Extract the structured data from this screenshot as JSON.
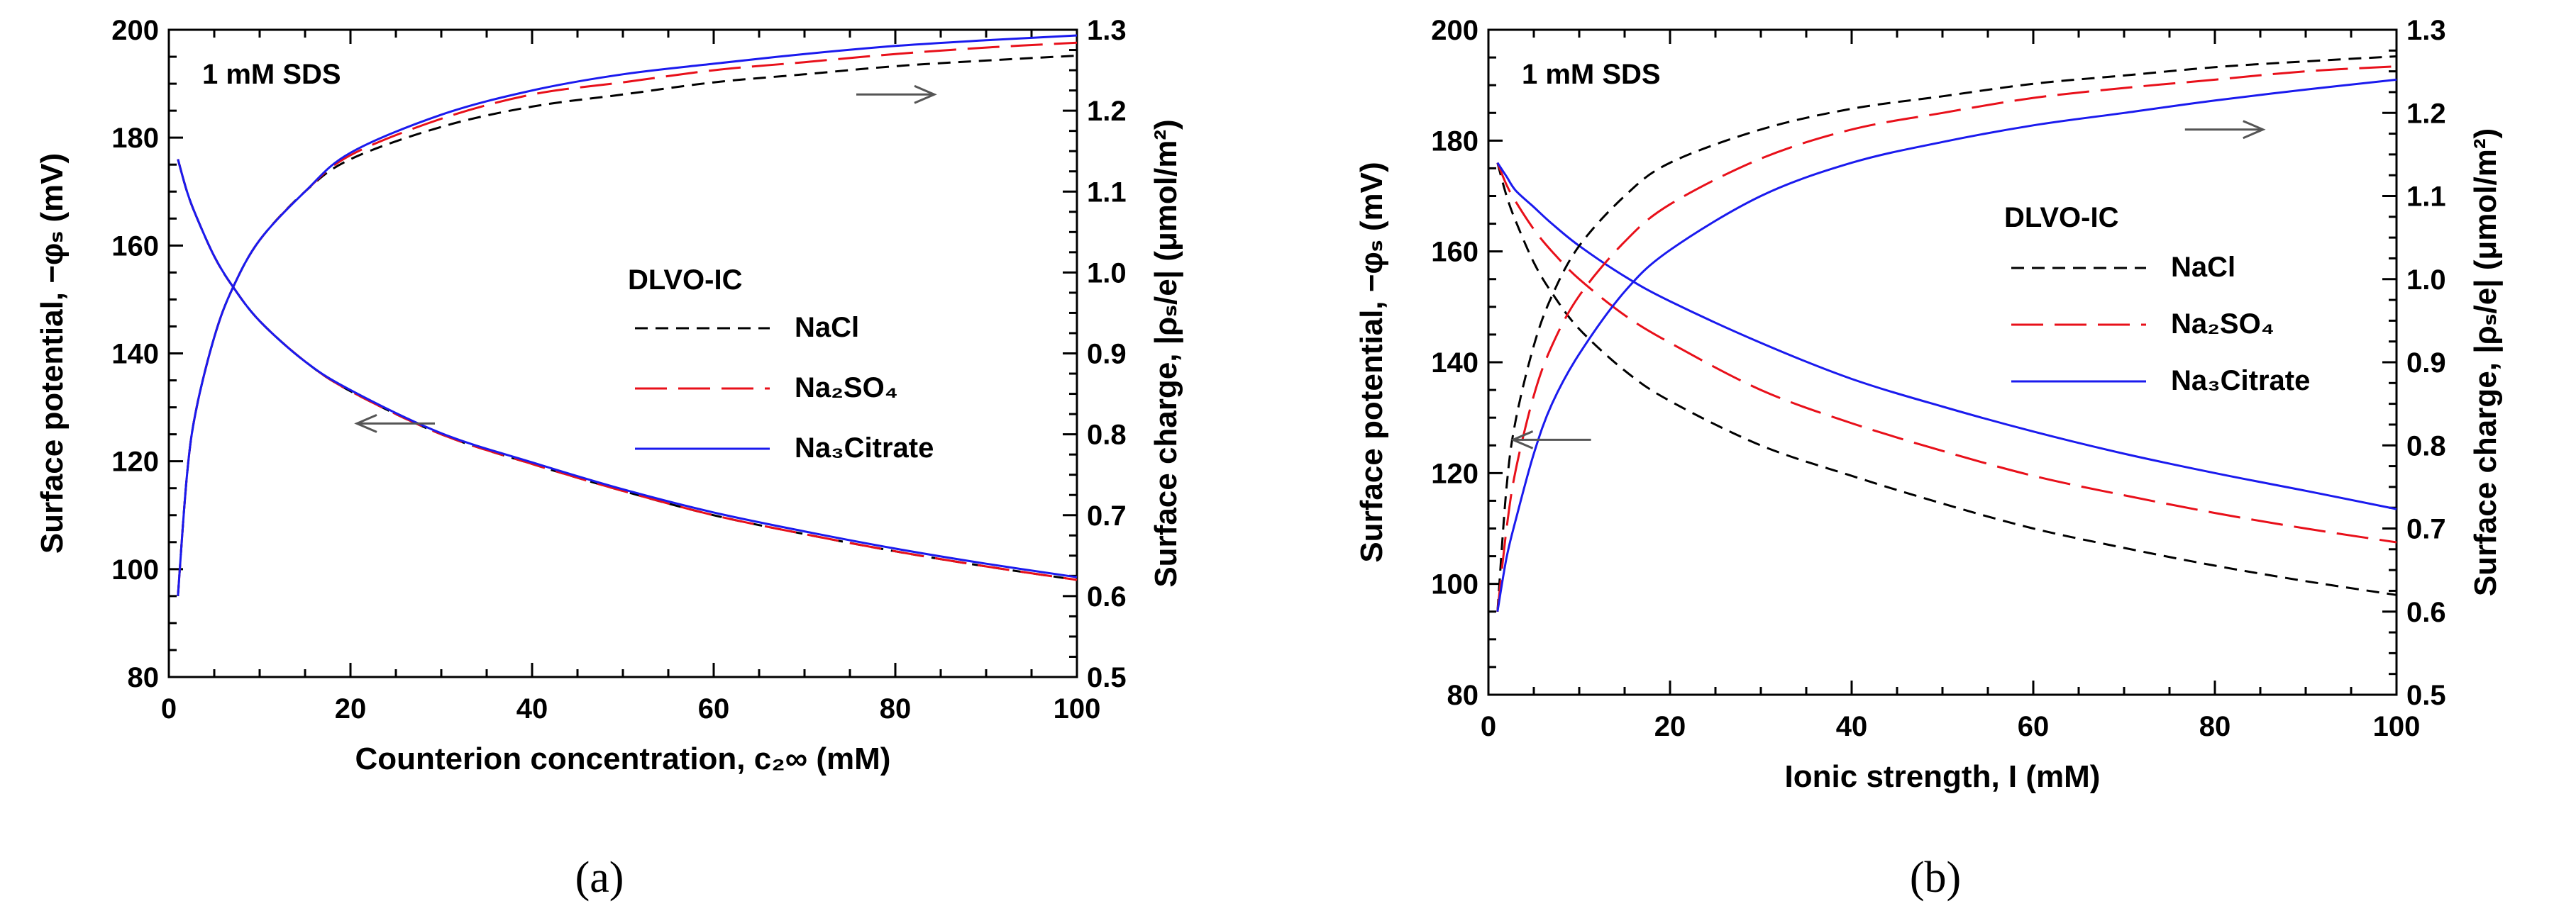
{
  "colors": {
    "NaCl": "#000000",
    "Na2SO4": "#e8101a",
    "Na3Citrate": "#1a1aee",
    "arrow": "#555555"
  },
  "chart_data": [
    {
      "type": "line",
      "panel_label": "(a)",
      "annotation": "1 mM SDS",
      "legend_title": "DLVO-IC",
      "legend": [
        {
          "key": "NaCl",
          "text": "NaCl",
          "style": "dashed short"
        },
        {
          "key": "Na2SO4",
          "text": "Na₂SO₄",
          "style": "dashed long"
        },
        {
          "key": "Na3Citrate",
          "text": "Na₃Citrate",
          "style": "solid"
        }
      ],
      "xlabel": "Counterion concentration, c₂∞ (mM)",
      "ylabel_left": "Surface potential, −φₛ (mV)",
      "ylabel_right": "Surface charge, |ρₛ/e| (μmol/m²)",
      "xlim": [
        0,
        100
      ],
      "ylim_left": [
        80,
        200
      ],
      "ylim_right": [
        0.5,
        1.3
      ],
      "xticks": [
        0,
        20,
        40,
        60,
        80,
        100
      ],
      "yticks_left": [
        80,
        100,
        120,
        140,
        160,
        180,
        200
      ],
      "yticks_right": [
        0.5,
        0.6,
        0.7,
        0.8,
        0.9,
        1.0,
        1.1,
        1.2,
        1.3
      ],
      "x": [
        1,
        2,
        3,
        5,
        7,
        10,
        15,
        20,
        30,
        40,
        50,
        60,
        70,
        80,
        90,
        100
      ],
      "series": [
        {
          "name": "NaCl",
          "axis": "left",
          "values": [
            176,
            170,
            165.5,
            158,
            152.5,
            146,
            138.5,
            133,
            125,
            119.5,
            114.5,
            110,
            106.5,
            103.3,
            100.5,
            98
          ]
        },
        {
          "name": "Na2SO4",
          "axis": "left",
          "values": [
            176,
            170,
            165.5,
            158,
            152.5,
            146,
            138.5,
            133,
            125,
            119.5,
            114.5,
            110,
            106.5,
            103.3,
            100.5,
            98
          ]
        },
        {
          "name": "Na3Citrate",
          "axis": "left",
          "values": [
            176,
            170,
            165.5,
            158,
            152.5,
            146,
            138.5,
            133.2,
            125.2,
            119.8,
            114.8,
            110.5,
            107,
            103.8,
            101,
            98.5
          ]
        },
        {
          "name": "NaCl",
          "axis": "right",
          "values": [
            0.6,
            0.75,
            0.83,
            0.92,
            0.98,
            1.04,
            1.1,
            1.14,
            1.18,
            1.205,
            1.22,
            1.235,
            1.245,
            1.255,
            1.262,
            1.268
          ]
        },
        {
          "name": "Na2SO4",
          "axis": "right",
          "values": [
            0.6,
            0.75,
            0.83,
            0.92,
            0.98,
            1.04,
            1.1,
            1.145,
            1.19,
            1.22,
            1.235,
            1.25,
            1.26,
            1.27,
            1.278,
            1.284
          ]
        },
        {
          "name": "Na3Citrate",
          "axis": "right",
          "values": [
            0.6,
            0.75,
            0.83,
            0.92,
            0.98,
            1.04,
            1.1,
            1.148,
            1.195,
            1.225,
            1.245,
            1.258,
            1.27,
            1.28,
            1.287,
            1.293
          ]
        }
      ],
      "arrows": [
        {
          "direction": "left",
          "at_x": 25,
          "at_y_left": 127
        },
        {
          "direction": "right",
          "at_x": 80,
          "at_y_left": 188
        }
      ]
    },
    {
      "type": "line",
      "panel_label": "(b)",
      "annotation": "1 mM SDS",
      "legend_title": "DLVO-IC",
      "legend": [
        {
          "key": "NaCl",
          "text": "NaCl",
          "style": "dashed short"
        },
        {
          "key": "Na2SO4",
          "text": "Na₂SO₄",
          "style": "dashed long"
        },
        {
          "key": "Na3Citrate",
          "text": "Na₃Citrate",
          "style": "solid"
        }
      ],
      "xlabel": "Ionic strength, I (mM)",
      "ylabel_left": "Surface potential, −φₛ (mV)",
      "ylabel_right": "Surface charge, |ρₛ/e| (μmol/m²)",
      "xlim": [
        0,
        100
      ],
      "ylim_left": [
        80,
        200
      ],
      "ylim_right": [
        0.5,
        1.3
      ],
      "xticks": [
        0,
        20,
        40,
        60,
        80,
        100
      ],
      "yticks_left": [
        80,
        100,
        120,
        140,
        160,
        180,
        200
      ],
      "yticks_right": [
        0.5,
        0.6,
        0.7,
        0.8,
        0.9,
        1.0,
        1.1,
        1.2,
        1.3
      ],
      "x": [
        1,
        2,
        3,
        5,
        7,
        10,
        15,
        20,
        30,
        40,
        50,
        60,
        70,
        80,
        90,
        100
      ],
      "series": [
        {
          "name": "NaCl",
          "axis": "left",
          "values": [
            176,
            170,
            165.5,
            158,
            152.5,
            146,
            138.5,
            133,
            125,
            119.5,
            114.5,
            110,
            106.5,
            103.3,
            100.5,
            98
          ]
        },
        {
          "name": "Na2SO4",
          "axis": "left",
          "values": [
            176,
            172,
            169,
            164,
            160,
            155,
            148.5,
            143.5,
            135,
            129,
            124,
            119.5,
            116,
            112.8,
            110,
            107.5
          ]
        },
        {
          "name": "Na3Citrate",
          "axis": "left",
          "values": [
            176,
            173.5,
            171,
            168,
            165,
            161,
            155.5,
            151,
            143.5,
            137,
            132,
            127.5,
            123.5,
            120,
            116.8,
            113.5
          ]
        },
        {
          "name": "NaCl",
          "axis": "right",
          "values": [
            0.6,
            0.75,
            0.83,
            0.92,
            0.98,
            1.04,
            1.1,
            1.14,
            1.18,
            1.205,
            1.22,
            1.235,
            1.245,
            1.255,
            1.262,
            1.268
          ]
        },
        {
          "name": "Na2SO4",
          "axis": "right",
          "values": [
            0.6,
            0.7,
            0.77,
            0.86,
            0.92,
            0.98,
            1.045,
            1.09,
            1.145,
            1.18,
            1.2,
            1.218,
            1.23,
            1.24,
            1.25,
            1.256
          ]
        },
        {
          "name": "Na3Citrate",
          "axis": "right",
          "values": [
            0.6,
            0.665,
            0.71,
            0.79,
            0.85,
            0.91,
            0.985,
            1.035,
            1.1,
            1.14,
            1.165,
            1.185,
            1.2,
            1.215,
            1.228,
            1.24
          ]
        }
      ],
      "arrows": [
        {
          "direction": "left",
          "at_x": 7,
          "at_y_left": 126
        },
        {
          "direction": "right",
          "at_x": 81,
          "at_y_left": 182
        }
      ]
    }
  ]
}
